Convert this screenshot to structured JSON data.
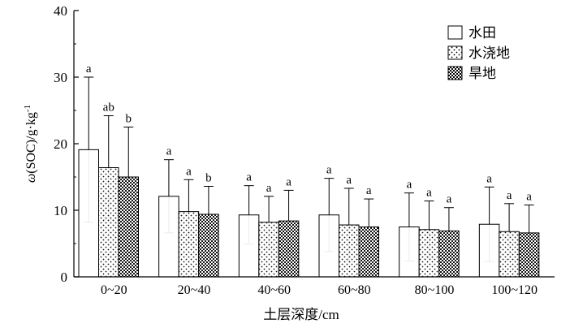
{
  "chart_data": {
    "type": "bar",
    "title": "",
    "xlabel": "土层深度/cm",
    "ylabel": {
      "omega": "ω",
      "main": "(SOC)/g·kg",
      "sup": "-1"
    },
    "ylim": [
      0,
      40
    ],
    "yticks": [
      "0",
      "10",
      "20",
      "30",
      "40"
    ],
    "categories": [
      "0~20",
      "20~40",
      "40~60",
      "60~80",
      "80~100",
      "100~120"
    ],
    "legend_position": "top-right",
    "grid": false,
    "series": [
      {
        "name": "水田",
        "pattern": "white",
        "values": [
          19.1,
          12.1,
          9.3,
          9.3,
          7.5,
          7.9
        ],
        "error": [
          10.9,
          5.5,
          4.4,
          5.5,
          5.1,
          5.6
        ],
        "labels": [
          "a",
          "a",
          "a",
          "a",
          "a",
          "a"
        ]
      },
      {
        "name": "水浇地",
        "pattern": "dots",
        "values": [
          16.4,
          9.8,
          8.2,
          7.8,
          7.1,
          6.8
        ],
        "error": [
          7.8,
          4.8,
          3.9,
          5.5,
          4.3,
          4.2
        ],
        "labels": [
          "ab",
          "a",
          "a",
          "a",
          "a",
          "a"
        ]
      },
      {
        "name": "旱地",
        "pattern": "checker",
        "values": [
          15.0,
          9.4,
          8.4,
          7.5,
          6.9,
          6.6
        ],
        "error": [
          7.5,
          4.2,
          4.6,
          4.2,
          3.5,
          4.2
        ],
        "labels": [
          "b",
          "b",
          "a",
          "a",
          "a",
          "a"
        ]
      }
    ]
  }
}
